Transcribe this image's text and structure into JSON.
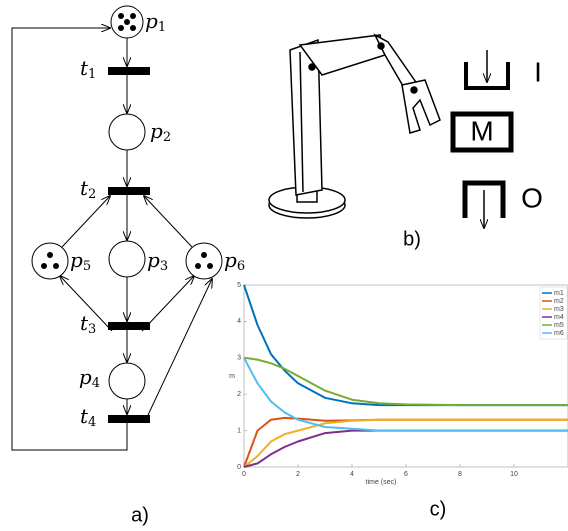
{
  "petri_net": {
    "places": [
      {
        "letter": "p",
        "index": "1",
        "tokens": 5
      },
      {
        "letter": "p",
        "index": "2",
        "tokens": 0
      },
      {
        "letter": "p",
        "index": "3",
        "tokens": 0
      },
      {
        "letter": "p",
        "index": "4",
        "tokens": 0
      },
      {
        "letter": "p",
        "index": "5",
        "tokens": 3
      },
      {
        "letter": "p",
        "index": "6",
        "tokens": 3
      }
    ],
    "transitions": [
      {
        "letter": "t",
        "index": "1"
      },
      {
        "letter": "t",
        "index": "2"
      },
      {
        "letter": "t",
        "index": "3"
      },
      {
        "letter": "t",
        "index": "4"
      }
    ],
    "caption": "a)"
  },
  "robot": {
    "labels": [
      "I",
      "M",
      "O"
    ],
    "caption": "b)"
  },
  "chart_data": {
    "type": "line",
    "caption": "c)",
    "x_label": "time (sec)",
    "y_label": "m",
    "x": [
      0,
      0.5,
      1,
      1.5,
      2,
      3,
      4,
      5,
      6,
      8,
      10,
      12
    ],
    "series": [
      {
        "name": "m1",
        "color": "#0072bd",
        "values": [
          5,
          3.9,
          3.1,
          2.65,
          2.3,
          1.9,
          1.75,
          1.7,
          1.7,
          1.7,
          1.7,
          1.7
        ]
      },
      {
        "name": "m2",
        "color": "#d95319",
        "values": [
          0,
          1.0,
          1.3,
          1.35,
          1.33,
          1.27,
          1.28,
          1.3,
          1.3,
          1.3,
          1.3,
          1.3
        ]
      },
      {
        "name": "m3",
        "color": "#edb120",
        "values": [
          0,
          0.3,
          0.7,
          0.9,
          1.0,
          1.2,
          1.27,
          1.3,
          1.3,
          1.3,
          1.3,
          1.3
        ]
      },
      {
        "name": "m4",
        "color": "#7e2f8e",
        "values": [
          0,
          0.1,
          0.35,
          0.55,
          0.7,
          0.93,
          1.0,
          1.0,
          1.0,
          1.0,
          1.0,
          1.0
        ]
      },
      {
        "name": "m5",
        "color": "#77ac30",
        "values": [
          3,
          2.95,
          2.85,
          2.7,
          2.5,
          2.1,
          1.85,
          1.75,
          1.72,
          1.7,
          1.7,
          1.7
        ]
      },
      {
        "name": "m6",
        "color": "#4dbeee",
        "values": [
          3,
          2.3,
          1.8,
          1.5,
          1.3,
          1.1,
          1.05,
          1.0,
          1.0,
          1.0,
          1.0,
          1.0
        ]
      }
    ],
    "xlim": [
      0,
      12
    ],
    "ylim": [
      0,
      5
    ],
    "xticks": [
      0,
      2,
      4,
      6,
      8,
      10
    ],
    "yticks": [
      0,
      1,
      2,
      3,
      4,
      5
    ],
    "legend": "upper-right"
  }
}
